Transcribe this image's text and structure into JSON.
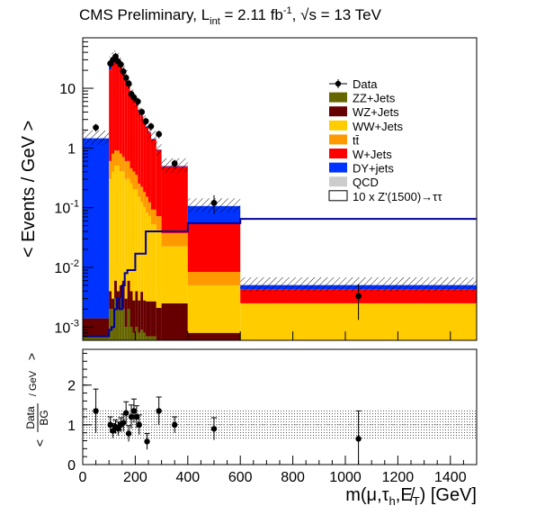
{
  "header": {
    "prefix": "CMS Preliminary, L",
    "lumi_sub": "int",
    "lumi_value": " = 2.11 fb",
    "lumi_exp": "-1",
    "energy": ", √s = 13 TeV"
  },
  "chart_data": [
    {
      "type": "bar",
      "subtype": "stacked-histogram",
      "ylabel": "< Events / GeV >",
      "ylog": true,
      "ylim": [
        0.0006,
        70
      ],
      "xlim": [
        0,
        1500
      ],
      "y_ticks": [
        {
          "value": 10,
          "base": "10",
          "exp": ""
        },
        {
          "value": 1,
          "base": "1",
          "exp": ""
        },
        {
          "value": 0.1,
          "base": "10",
          "exp": "-1"
        },
        {
          "value": 0.01,
          "base": "10",
          "exp": "-2"
        },
        {
          "value": 0.001,
          "base": "10",
          "exp": "-3"
        }
      ],
      "legend_position": "top-right",
      "legend": [
        {
          "name": "Data",
          "style": "marker"
        },
        {
          "name": "ZZ+Jets",
          "color": "#666600"
        },
        {
          "name": "WZ+Jets",
          "color": "#660000"
        },
        {
          "name": "WW+Jets",
          "color": "#ffcc00"
        },
        {
          "name": "tt̄",
          "color": "#ff9900"
        },
        {
          "name": "W+Jets",
          "color": "#ff0000"
        },
        {
          "name": "DY+jets",
          "color": "#0033ff"
        },
        {
          "name": "QCD",
          "color": "#cccccc"
        },
        {
          "name": "10 x Z'(1500)→ττ",
          "color": "#ffffff",
          "line": "#000099"
        }
      ],
      "bins": [
        {
          "lo": 0,
          "hi": 100,
          "ZZ": 0.0007,
          "WZ": 0.0007,
          "WW": 0,
          "TT": 0,
          "WJ": 0,
          "DY": 1.45,
          "QCD": 0
        },
        {
          "lo": 100,
          "hi": 110,
          "ZZ": 0.002,
          "WZ": 0.002,
          "WW": 0.3,
          "TT": 0.3,
          "WJ": 20,
          "DY": 5,
          "QCD": 0
        },
        {
          "lo": 110,
          "hi": 120,
          "ZZ": 0.002,
          "WZ": 0.001,
          "WW": 0.4,
          "TT": 0.4,
          "WJ": 25,
          "DY": 4,
          "QCD": 0
        },
        {
          "lo": 120,
          "hi": 130,
          "ZZ": 0.003,
          "WZ": 0.003,
          "WW": 0.5,
          "TT": 0.4,
          "WJ": 28,
          "DY": 3,
          "QCD": 0
        },
        {
          "lo": 130,
          "hi": 140,
          "ZZ": 0.002,
          "WZ": 0.002,
          "WW": 0.5,
          "TT": 0.4,
          "WJ": 26,
          "DY": 2,
          "QCD": 0
        },
        {
          "lo": 140,
          "hi": 150,
          "ZZ": 0.003,
          "WZ": 0.002,
          "WW": 0.4,
          "TT": 0.4,
          "WJ": 22,
          "DY": 1.5,
          "QCD": 0
        },
        {
          "lo": 150,
          "hi": 160,
          "ZZ": 0.002,
          "WZ": 0.004,
          "WW": 0.4,
          "TT": 0.3,
          "WJ": 18,
          "DY": 0.8,
          "QCD": 0
        },
        {
          "lo": 160,
          "hi": 170,
          "ZZ": 0.001,
          "WZ": 0.002,
          "WW": 0.3,
          "TT": 0.3,
          "WJ": 14,
          "DY": 0.5,
          "QCD": 0
        },
        {
          "lo": 170,
          "hi": 180,
          "ZZ": 0.002,
          "WZ": 0.004,
          "WW": 0.3,
          "TT": 0.3,
          "WJ": 11,
          "DY": 0.3,
          "QCD": 0
        },
        {
          "lo": 180,
          "hi": 190,
          "ZZ": 0.001,
          "WZ": 0.003,
          "WW": 0.25,
          "TT": 0.2,
          "WJ": 8,
          "DY": 0.2,
          "QCD": 0
        },
        {
          "lo": 190,
          "hi": 200,
          "ZZ": 0.0008,
          "WZ": 0.002,
          "WW": 0.2,
          "TT": 0.2,
          "WJ": 6.5,
          "DY": 0.15,
          "QCD": 0
        },
        {
          "lo": 200,
          "hi": 210,
          "ZZ": 0.001,
          "WZ": 0.003,
          "WW": 0.2,
          "TT": 0.15,
          "WJ": 5,
          "DY": 0.1,
          "QCD": 0
        },
        {
          "lo": 210,
          "hi": 220,
          "ZZ": 0.0008,
          "WZ": 0.002,
          "WW": 0.15,
          "TT": 0.1,
          "WJ": 4,
          "DY": 0.08,
          "QCD": 0
        },
        {
          "lo": 220,
          "hi": 230,
          "ZZ": 0.0009,
          "WZ": 0.003,
          "WW": 0.12,
          "TT": 0.1,
          "WJ": 3.2,
          "DY": 0.06,
          "QCD": 0
        },
        {
          "lo": 230,
          "hi": 240,
          "ZZ": 0.0008,
          "WZ": 0.002,
          "WW": 0.1,
          "TT": 0.08,
          "WJ": 2.6,
          "DY": 0.05,
          "QCD": 0
        },
        {
          "lo": 240,
          "hi": 250,
          "ZZ": 0.0007,
          "WZ": 0.002,
          "WW": 0.08,
          "TT": 0.07,
          "WJ": 2.1,
          "DY": 0.04,
          "QCD": 0
        },
        {
          "lo": 250,
          "hi": 260,
          "ZZ": 0.0007,
          "WZ": 0.002,
          "WW": 0.07,
          "TT": 0.05,
          "WJ": 1.7,
          "DY": 0.03,
          "QCD": 0
        },
        {
          "lo": 260,
          "hi": 280,
          "ZZ": 0.0007,
          "WZ": 0.002,
          "WW": 0.05,
          "TT": 0.04,
          "WJ": 1.3,
          "DY": 0.03,
          "QCD": 0
        },
        {
          "lo": 280,
          "hi": 300,
          "ZZ": 0.0006,
          "WZ": 0.0015,
          "WW": 0.04,
          "TT": 0.03,
          "WJ": 0.85,
          "DY": 0.02,
          "QCD": 0
        },
        {
          "lo": 300,
          "hi": 400,
          "ZZ": 0.0005,
          "WZ": 0.002,
          "WW": 0.02,
          "TT": 0.015,
          "WJ": 0.45,
          "DY": 0.01,
          "QCD": 0
        },
        {
          "lo": 400,
          "hi": 600,
          "ZZ": 0,
          "WZ": 0.0008,
          "WW": 0.0042,
          "TT": 0.0034,
          "WJ": 0.048,
          "DY": 0.05,
          "QCD": 0
        },
        {
          "lo": 600,
          "hi": 1500,
          "ZZ": 0,
          "WZ": 0.0001,
          "WW": 0.0024,
          "TT": 0,
          "WJ": 0.0018,
          "DY": 0.00075,
          "QCD": 0
        }
      ],
      "signal_steps": [
        [
          0,
          0.0007
        ],
        [
          100,
          0.0007
        ],
        [
          100,
          0.0009
        ],
        [
          110,
          0.001
        ],
        [
          120,
          0.002
        ],
        [
          130,
          0.003
        ],
        [
          140,
          0.002
        ],
        [
          150,
          0.005
        ],
        [
          160,
          0.008
        ],
        [
          170,
          0.009
        ],
        [
          200,
          0.017
        ],
        [
          240,
          0.04
        ],
        [
          300,
          0.04
        ],
        [
          400,
          0.055
        ],
        [
          600,
          0.065
        ],
        [
          1500,
          0.065
        ]
      ],
      "data": [
        {
          "x": 50,
          "y": 2.2
        },
        {
          "x": 105,
          "y": 26
        },
        {
          "x": 115,
          "y": 30
        },
        {
          "x": 125,
          "y": 34
        },
        {
          "x": 135,
          "y": 28
        },
        {
          "x": 145,
          "y": 25
        },
        {
          "x": 155,
          "y": 19
        },
        {
          "x": 165,
          "y": 15
        },
        {
          "x": 175,
          "y": 12
        },
        {
          "x": 185,
          "y": 8
        },
        {
          "x": 195,
          "y": 7
        },
        {
          "x": 210,
          "y": 6
        },
        {
          "x": 225,
          "y": 4
        },
        {
          "x": 240,
          "y": 2.8
        },
        {
          "x": 260,
          "y": 2.3
        },
        {
          "x": 290,
          "y": 1.7
        },
        {
          "x": 350,
          "y": 0.55
        },
        {
          "x": 500,
          "y": 0.12
        },
        {
          "x": 1050,
          "y": 0.0033
        }
      ]
    },
    {
      "type": "scatter",
      "subtype": "ratio",
      "ylabel_num": "Data",
      "ylabel_den": "BG",
      "ylabel_suffix": "/ GeV",
      "ylim": [
        0,
        2.9
      ],
      "y_ticks": [
        0,
        1,
        2
      ],
      "xlim": [
        0,
        1500
      ],
      "x_ticks": [
        0,
        200,
        400,
        600,
        800,
        1000,
        1200,
        1400
      ],
      "xlabel": "m(μ,τ_h,E̸_T) [GeV]",
      "points": [
        {
          "x": 50,
          "y": 1.35,
          "err": 0.55
        },
        {
          "x": 105,
          "y": 1.0,
          "err": 0.2
        },
        {
          "x": 115,
          "y": 0.85,
          "err": 0.18
        },
        {
          "x": 125,
          "y": 0.95,
          "err": 0.17
        },
        {
          "x": 135,
          "y": 0.9,
          "err": 0.17
        },
        {
          "x": 145,
          "y": 1.0,
          "err": 0.18
        },
        {
          "x": 155,
          "y": 1.05,
          "err": 0.22
        },
        {
          "x": 165,
          "y": 1.3,
          "err": 0.28
        },
        {
          "x": 175,
          "y": 0.78,
          "err": 0.2
        },
        {
          "x": 185,
          "y": 1.2,
          "err": 0.3
        },
        {
          "x": 195,
          "y": 1.35,
          "err": 0.3
        },
        {
          "x": 205,
          "y": 1.2,
          "err": 0.28
        },
        {
          "x": 215,
          "y": 1.0,
          "err": 0.25
        },
        {
          "x": 245,
          "y": 0.58,
          "err": 0.2
        },
        {
          "x": 290,
          "y": 1.35,
          "err": 0.35
        },
        {
          "x": 350,
          "y": 1.0,
          "err": 0.2
        },
        {
          "x": 500,
          "y": 0.9,
          "err": 0.28
        },
        {
          "x": 1050,
          "y": 0.65,
          "err": 0.7
        }
      ],
      "uncertainty_band": [
        [
          0,
          1500,
          0.65,
          1.4
        ]
      ]
    }
  ]
}
